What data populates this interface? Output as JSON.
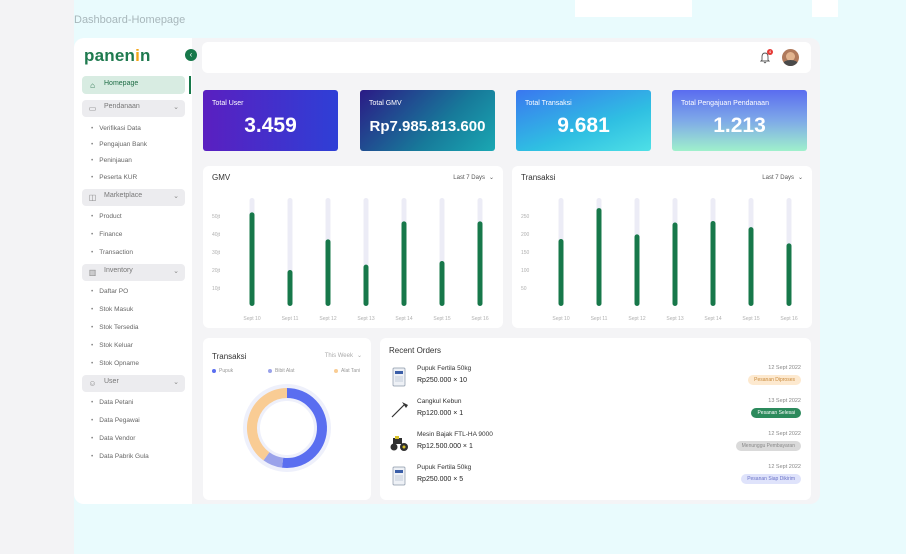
{
  "frame_label": "Dashboard-Homepage",
  "sidebar": {
    "logo": "panen",
    "logo_accent": "i",
    "logo_end": "n",
    "home_label": "Homepage",
    "groups": [
      {
        "label": "Pendanaan",
        "icon": "wallet-icon",
        "items": [
          "Verifikasi Data",
          "Pengajuan Bank",
          "Peninjauan",
          "Peserta KUR"
        ]
      },
      {
        "label": "Marketplace",
        "icon": "shopping-bag-icon",
        "items": [
          "Product",
          "Finance",
          "Transaction"
        ]
      },
      {
        "label": "Inventory",
        "icon": "bar-chart-icon",
        "items": [
          "Daftar PO",
          "Stok Masuk",
          "Stok Tersedia",
          "Stok Keluar",
          "Stok Opname"
        ]
      },
      {
        "label": "User",
        "icon": "users-icon",
        "items": [
          "Data Petani",
          "Data Pegawai",
          "Data Vendor",
          "Data Pabrik Gula"
        ]
      }
    ]
  },
  "header": {
    "notification_count": "4"
  },
  "stats": [
    {
      "label": "Total User",
      "value": "3.459"
    },
    {
      "label": "Total GMV",
      "value": "Rp7.985.813.600"
    },
    {
      "label": "Total Transaksi",
      "value": "9.681"
    },
    {
      "label": "Total Pengajuan Pendanaan",
      "value": "1.213"
    }
  ],
  "colors": {
    "brand_green": "#17784a",
    "bar_track": "#ececf6",
    "donut_blue": "#5a6ef0",
    "donut_peach": "#f9cc94",
    "donut_lavender": "#9aa2ea"
  },
  "chart_data": [
    {
      "type": "bar",
      "title": "GMV",
      "range_label": "Last 7 Days",
      "categories": [
        "Sept 10",
        "Sept 11",
        "Sept 12",
        "Sept 13",
        "Sept 14",
        "Sept 15",
        "Sept 16"
      ],
      "y_ticks": [
        "50jt",
        "40jt",
        "30jt",
        "20jt",
        "10jt"
      ],
      "ylim": [
        0,
        60
      ],
      "values": [
        52,
        20,
        37,
        23,
        47,
        25,
        47
      ]
    },
    {
      "type": "bar",
      "title": "Transaksi",
      "range_label": "Last 7 Days",
      "categories": [
        "Sept 10",
        "Sept 11",
        "Sept 12",
        "Sept 13",
        "Sept 14",
        "Sept 15",
        "Sept 16"
      ],
      "y_ticks": [
        "250",
        "200",
        "150",
        "100",
        "50"
      ],
      "ylim": [
        0,
        300
      ],
      "values": [
        186,
        272,
        199,
        232,
        236,
        219,
        174
      ]
    },
    {
      "type": "pie",
      "title": "Transaksi",
      "range_label": "This Week",
      "series": [
        {
          "name": "Pupuk",
          "value": 52
        },
        {
          "name": "Bibit Alat",
          "value": 8
        },
        {
          "name": "Alat Tani",
          "value": 40
        }
      ]
    }
  ],
  "orders": {
    "title": "Recent Orders",
    "items": [
      {
        "name": "Pupuk Fertila 50kg",
        "price": "Rp250.000 × 10",
        "date": "12 Sept 2022",
        "status": "Pesanan Diproses",
        "bg": "#fde9cf",
        "fg": "#c8893a",
        "thumb": "fertilizer-bag-icon"
      },
      {
        "name": "Cangkul Kebun",
        "price": "Rp120.000 × 1",
        "date": "13 Sept 2022",
        "status": "Pesanan Selesai",
        "bg": "#2c8a5c",
        "fg": "#ffffff",
        "thumb": "hoe-icon"
      },
      {
        "name": "Mesin Bajak FTL-HA 9000",
        "price": "Rp12.500.000 × 1",
        "date": "12 Sept 2022",
        "status": "Menunggu Pembayaran",
        "bg": "#dadada",
        "fg": "#8a8a8a",
        "thumb": "tractor-icon"
      },
      {
        "name": "Pupuk Fertila 50kg",
        "price": "Rp250.000 × 5",
        "date": "12 Sept 2022",
        "status": "Pesanan Siap Dikirim",
        "bg": "#dfe3fb",
        "fg": "#6a72c7",
        "thumb": "fertilizer-bag-icon"
      }
    ]
  }
}
